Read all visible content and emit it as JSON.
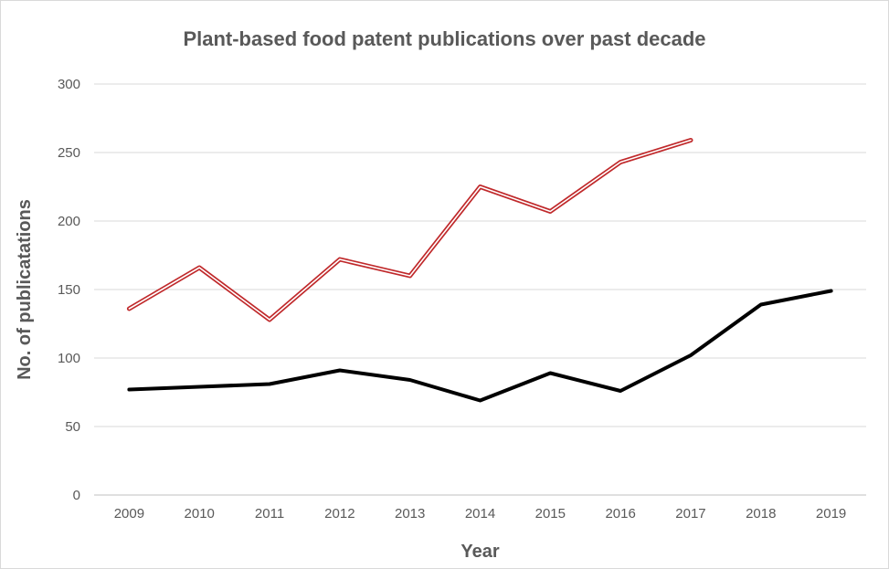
{
  "chart_data": {
    "type": "line",
    "title": "Plant-based food patent publications over past decade",
    "xlabel": "Year",
    "ylabel": "No. of publicatations",
    "categories": [
      "2009",
      "2010",
      "2011",
      "2012",
      "2013",
      "2014",
      "2015",
      "2016",
      "2017",
      "2018",
      "2019"
    ],
    "ylim": [
      0,
      300
    ],
    "yticks": [
      0,
      50,
      100,
      150,
      200,
      250,
      300
    ],
    "grid": true,
    "legend": "none",
    "series": [
      {
        "color": "#c0292b",
        "style": "double-line",
        "values": [
          136,
          166,
          128,
          172,
          160,
          225,
          207,
          243,
          259,
          null,
          null
        ]
      },
      {
        "color": "#000000",
        "style": "solid-thick",
        "values": [
          77,
          79,
          81,
          91,
          84,
          69,
          89,
          76,
          102,
          139,
          149
        ]
      }
    ]
  }
}
